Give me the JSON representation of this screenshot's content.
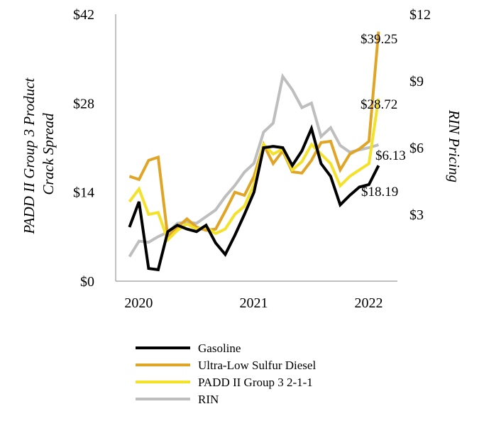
{
  "chart_data": {
    "type": "line",
    "title": "",
    "xlabel": "",
    "ylabel": "PADD II Group 3 Product Crack Spread",
    "ylabel_right": "RIN Pricing",
    "ylim": [
      0,
      42
    ],
    "ylim_right": [
      0,
      12
    ],
    "yticks": [
      "$0",
      "$14",
      "$28",
      "$42"
    ],
    "yticks_right": [
      "$3",
      "$6",
      "$9",
      "$12"
    ],
    "xticks": [
      "2020",
      "2021",
      "2022"
    ],
    "x_start": 2019.92,
    "x_step": 0.0833,
    "series": [
      {
        "name": "Gasoline",
        "axis": "left",
        "color": "#000000",
        "values": [
          8.5,
          12.5,
          2.0,
          1.8,
          7.8,
          8.8,
          8.2,
          7.8,
          8.8,
          6.0,
          4.2,
          7.2,
          10.5,
          14.0,
          21.0,
          21.2,
          21.0,
          18.2,
          20.5,
          24.0,
          18.5,
          16.5,
          12.0,
          13.5,
          14.8,
          15.2,
          18.19
        ],
        "end_label": "$18.19"
      },
      {
        "name": "Ultra-Low Sulfur Diesel",
        "axis": "left",
        "color": "#E0A526",
        "values": [
          16.5,
          16.0,
          19.0,
          19.5,
          7.0,
          8.5,
          9.8,
          8.5,
          8.0,
          8.2,
          11.0,
          14.0,
          13.5,
          16.5,
          21.5,
          18.5,
          20.5,
          17.2,
          17.0,
          19.0,
          21.8,
          22.0,
          17.5,
          20.0,
          20.8,
          22.0,
          39.25
        ],
        "end_label": "$39.25"
      },
      {
        "name": "PADD II Group 3 2-1-1",
        "axis": "left",
        "color": "#F3E12A",
        "values": [
          12.5,
          14.5,
          10.5,
          10.8,
          6.5,
          8.0,
          9.0,
          8.2,
          8.5,
          7.5,
          8.2,
          10.5,
          11.8,
          15.2,
          21.5,
          20.0,
          20.8,
          17.5,
          18.8,
          21.5,
          20.0,
          18.5,
          15.0,
          16.5,
          17.5,
          18.5,
          28.72
        ],
        "end_label": "$28.72"
      },
      {
        "name": "RIN",
        "axis": "right",
        "color": "#BEBEBE",
        "values": [
          1.1,
          1.8,
          1.75,
          2.0,
          2.2,
          2.6,
          2.65,
          2.6,
          2.9,
          3.2,
          3.8,
          4.3,
          4.9,
          5.3,
          6.7,
          7.1,
          9.2,
          8.6,
          7.8,
          8.0,
          6.5,
          6.9,
          6.1,
          5.8,
          5.9,
          6.0,
          6.13
        ],
        "end_label": "$6.13"
      }
    ],
    "legend_position": "bottom"
  }
}
